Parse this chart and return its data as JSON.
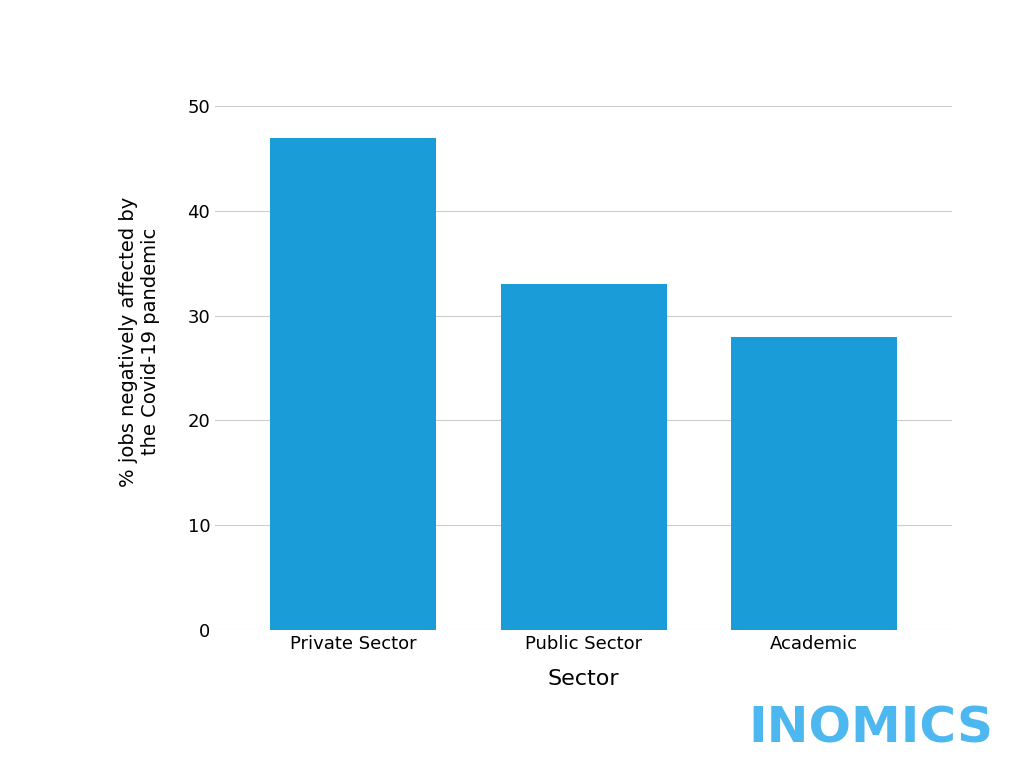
{
  "categories": [
    "Private Sector",
    "Public Sector",
    "Academic"
  ],
  "values": [
    47,
    33,
    28
  ],
  "bar_color": "#1a9cd8",
  "xlabel": "Sector",
  "ylabel": "% jobs negatively affected by\nthe Covid-19 pandemic",
  "ylim": [
    0,
    55
  ],
  "yticks": [
    0,
    10,
    20,
    30,
    40,
    50
  ],
  "background_color": "#ffffff",
  "inomics_text": "INOMICS",
  "inomics_color": "#4db8f0",
  "grid_color": "#cccccc",
  "xlabel_fontsize": 16,
  "ylabel_fontsize": 14,
  "tick_fontsize": 13,
  "inomics_fontsize": 36,
  "bar_width": 0.72
}
